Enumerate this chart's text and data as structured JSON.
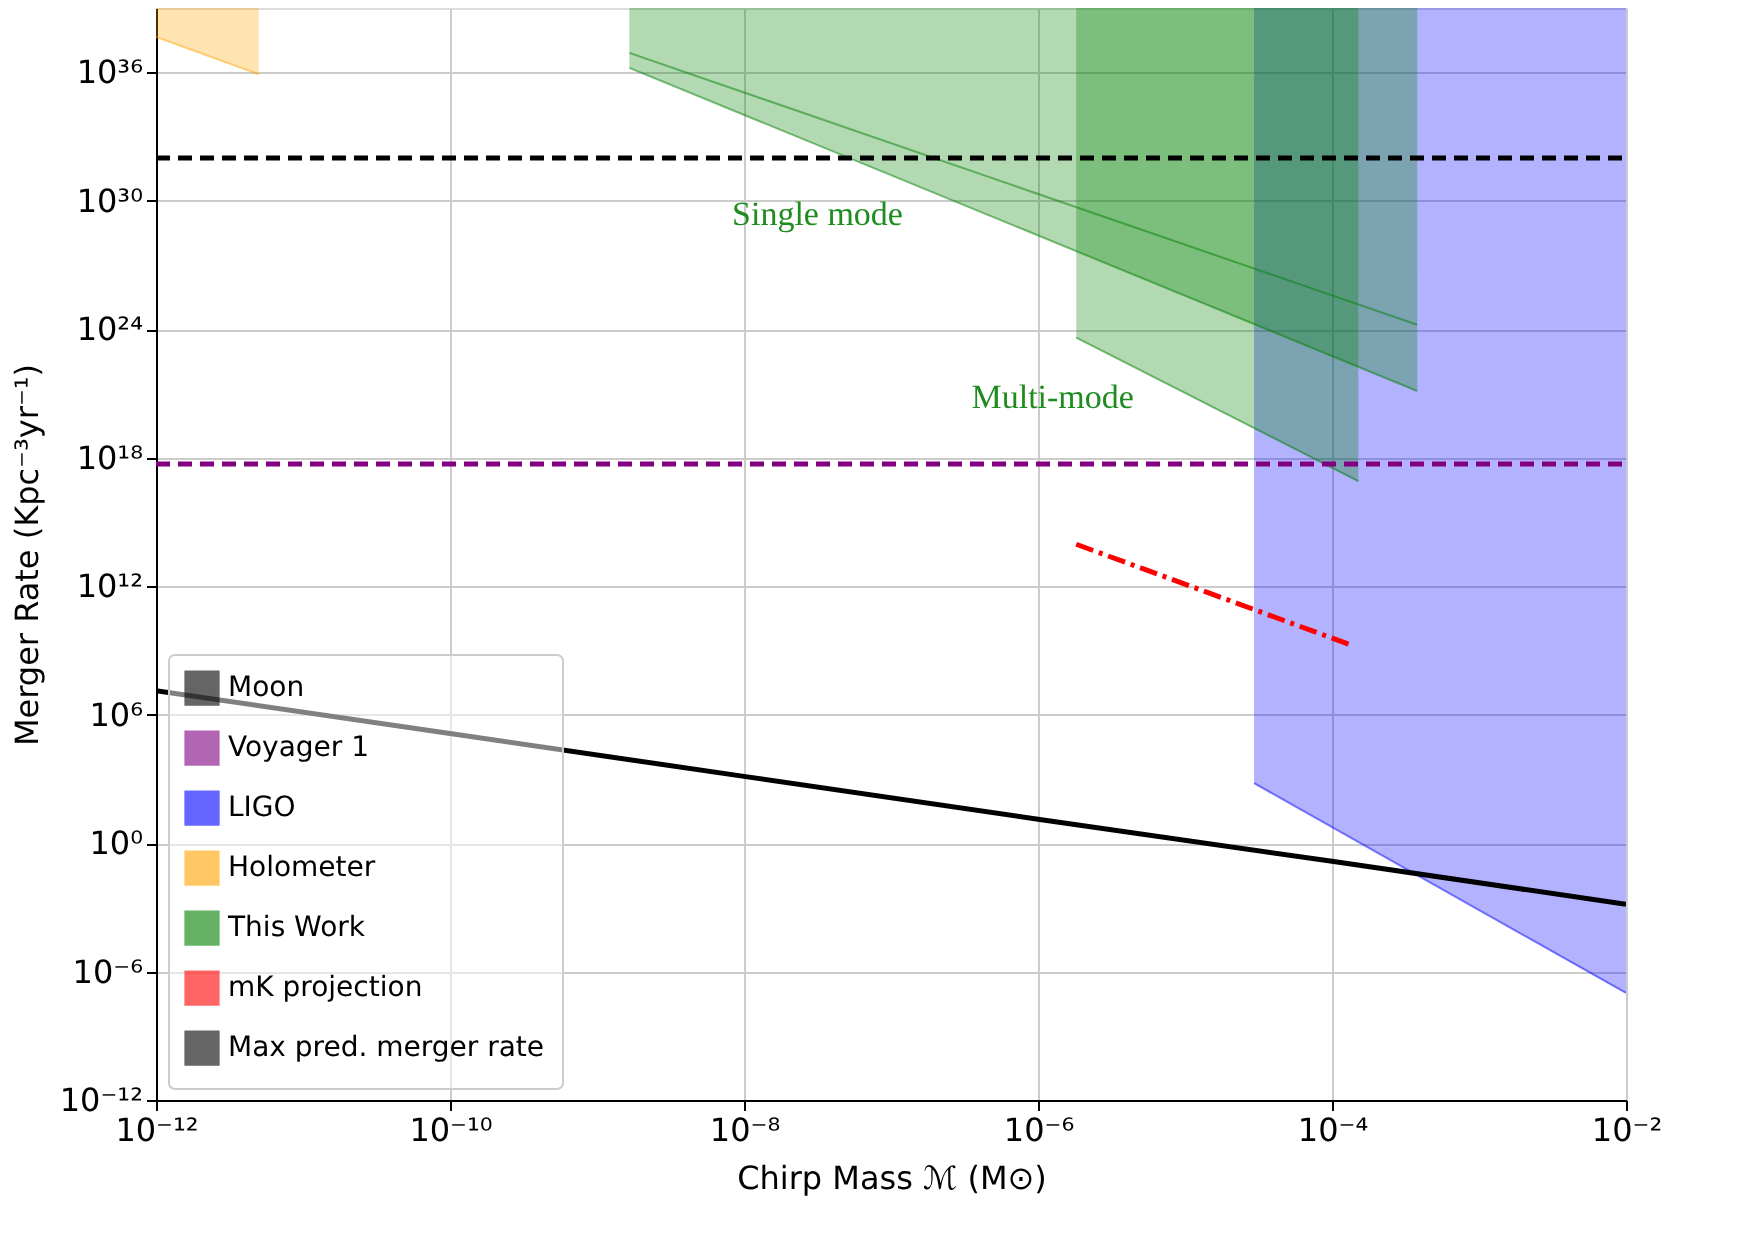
{
  "chart_data": {
    "type": "line",
    "xlabel": "Chirp Mass ℳ (M⊙)",
    "ylabel": "Merger Rate (Kpc⁻³yr⁻¹)",
    "log": "xy",
    "grid": true,
    "legend": "bottom left",
    "xlim": [
      1e-12,
      0.01
    ],
    "ylim": [
      1e-12,
      1e+39
    ],
    "xticks": [
      {
        "value": 1e-12,
        "label": "10⁻¹²"
      },
      {
        "value": 1e-10,
        "label": "10⁻¹⁰"
      },
      {
        "value": 1e-08,
        "label": "10⁻⁸"
      },
      {
        "value": 1e-06,
        "label": "10⁻⁶"
      },
      {
        "value": 0.0001,
        "label": "10⁻⁴"
      },
      {
        "value": 0.01,
        "label": "10⁻²"
      }
    ],
    "yticks": [
      {
        "value": 1e-12,
        "label": "10⁻¹²"
      },
      {
        "value": 1e-06,
        "label": "10⁻⁶"
      },
      {
        "value": 1,
        "label": "10⁰"
      },
      {
        "value": 1000000.0,
        "label": "10⁶"
      },
      {
        "value": 1000000000000.0,
        "label": "10¹²"
      },
      {
        "value": 1e+18,
        "label": "10¹⁸"
      },
      {
        "value": 1e+24,
        "label": "10²⁴"
      },
      {
        "value": 1e+30,
        "label": "10³⁰"
      },
      {
        "value": 1e+36,
        "label": "10³⁶"
      }
    ],
    "series": [
      {
        "name": "Moon",
        "line_style": "dashed",
        "color": "#000000",
        "x": [
          1e-12,
          0.01
        ],
        "values": [
          1e+32,
          1e+32
        ]
      },
      {
        "name": "Voyager 1",
        "line_style": "dashed",
        "color": "#800080",
        "x": [
          1e-12,
          0.01
        ],
        "values": [
          5e+17,
          5e+17
        ]
      },
      {
        "name": "LIGO",
        "color": "#0000ff",
        "x": [
          2.95e-05,
          0.01
        ],
        "values": [
          630,
          1e-07
        ],
        "lower": [
          630,
          1e-07
        ],
        "upper": [
          1e+39,
          1e+39
        ]
      },
      {
        "name": "Holometer",
        "color": "#ffa500",
        "x": [
          1e-12,
          5e-12
        ],
        "values": [
          4.5e+37,
          8e+35
        ],
        "lower": [
          4.5e+37,
          8e+35
        ],
        "upper": [
          1e+39,
          1e+39
        ]
      },
      {
        "name": "This Work",
        "color": "#008000",
        "x": [
          1.66e-09,
          0.00038
        ],
        "values": [
          1.6e+36,
          1.3e+21
        ],
        "lower": [
          1.6e+36,
          1.3e+21
        ],
        "upper": [
          8e+36,
          1.6e+24
        ]
      },
      {
        "color": "#008000",
        "x": [
          1.66e-09,
          0.00038
        ],
        "values": [
          8e+36,
          1.6e+24
        ],
        "lower": [
          8e+36,
          1.6e+24
        ],
        "upper": [
          1e+39,
          1e+39
        ]
      },
      {
        "color": "#008000",
        "x": [
          1.82e-06,
          0.000151
        ],
        "values": [
          4e+23,
          8e+16
        ],
        "lower": [
          4e+23,
          8e+16
        ],
        "upper": [
          1e+39,
          1e+39
        ]
      },
      {
        "name": "mK projection",
        "line_style": "dashdot",
        "color": "#ff0000",
        "x": [
          1.82e-06,
          0.00014
        ],
        "values": [
          90000000000000.0,
          1600000000.0
        ]
      },
      {
        "name": "Max pred. merger rate",
        "line_style": "solid",
        "color": "#000000",
        "x": [
          1e-12,
          1e-10,
          1e-08,
          1e-06,
          0.0001,
          0.01
        ],
        "values": [
          13000000.0,
          130000.0,
          1300.0,
          13,
          0.14,
          0.0014
        ]
      }
    ],
    "annotations": [
      "Single mode",
      "Multi-mode"
    ]
  }
}
